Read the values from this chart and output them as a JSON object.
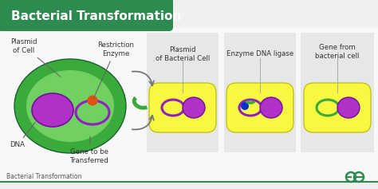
{
  "title": "Bacterial Transformation",
  "footer_text": "Bacterial Transformation",
  "bg_color": "#f0f0f0",
  "header_color": "#2e8b50",
  "header_text_color": "#ffffff",
  "panel_bg": "#e0e0e0",
  "cell_fill": "#f8f840",
  "cell_edge": "#b8b800",
  "plasmid_ring_color": "#9020c0",
  "nucleus_color": "#b030c8",
  "nucleus_edge": "#7010a0",
  "green_outer": "#3aaa3a",
  "green_inner": "#70d060",
  "orange_dot": "#e05010",
  "blue_dot": "#0030d0",
  "green_frag": "#3aaa3a",
  "label_color": "#333333",
  "arrow_color": "#707070",
  "footer_line_color": "#2e8b50",
  "logo_color": "#2e8b50",
  "label_fs": 6.2,
  "labels": {
    "plasmid_cell": "Plasmid\nof Cell",
    "restriction": "Restriction\nEnzyme",
    "dna": "DNA",
    "gene_transfer": "Gene to be\nTransferred",
    "panel2": "Plasmid\nof Bacterial Cell",
    "panel3": "Enzyme DNA ligase",
    "panel4": "Gene from\nbacterial cell"
  }
}
